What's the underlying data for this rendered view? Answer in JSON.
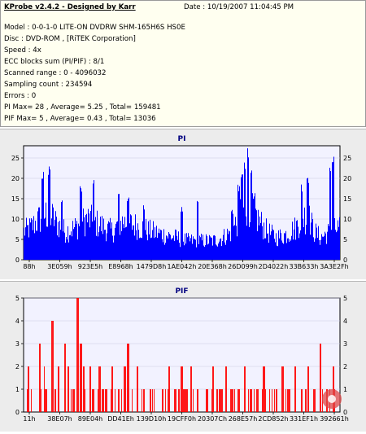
{
  "info": {
    "title": "KProbe v2.4.2 - Designed by Karr",
    "date": "Date : 10/19/2007 11:04:45 PM",
    "lines": [
      "Model : 0-0-1-0 LITE-ON DVDRW SHM-165H6S HS0E",
      "Disc : DVD-ROM ,  [RiTEK Corporation]",
      "Speed : 4x",
      "ECC blocks sum (PI/PIF) : 8/1",
      "Scanned range : 0 - 4096032",
      "Sampling count : 234594",
      "Errors : 0",
      "PI Max= 28 , Average= 5.25 , Total= 159481",
      "PIF Max= 5 , Average= 0.43 , Total= 13036"
    ]
  },
  "chart_data": [
    {
      "type": "bar",
      "title": "PI",
      "ylim": [
        0,
        28
      ],
      "yticks": [
        0,
        5,
        10,
        15,
        20,
        25
      ],
      "xtick_labels": [
        "88h",
        "3E059h",
        "923E5h",
        "E8968h",
        "1479D8h",
        "1AE042h",
        "20E368h",
        "26D099h",
        "2D4022h",
        "33B633h",
        "3A3E2Fh"
      ],
      "color": "#0000ff",
      "max": 28,
      "average": 5.25,
      "envelope": [
        [
          0,
          9
        ],
        [
          2,
          10
        ],
        [
          5,
          13
        ],
        [
          8,
          15
        ],
        [
          10,
          12
        ],
        [
          13,
          9
        ],
        [
          16,
          10
        ],
        [
          20,
          13
        ],
        [
          24,
          11
        ],
        [
          28,
          9
        ],
        [
          31,
          12
        ],
        [
          35,
          11
        ],
        [
          40,
          9
        ],
        [
          44,
          8
        ],
        [
          48,
          7
        ],
        [
          52,
          6
        ],
        [
          56,
          6
        ],
        [
          60,
          6
        ],
        [
          63,
          7
        ],
        [
          66,
          9
        ],
        [
          68,
          13
        ],
        [
          70,
          17
        ],
        [
          72,
          18
        ],
        [
          74,
          13
        ],
        [
          77,
          9
        ],
        [
          80,
          7
        ],
        [
          83,
          8
        ],
        [
          86,
          10
        ],
        [
          88,
          13
        ],
        [
          90,
          14
        ],
        [
          92,
          9
        ],
        [
          94,
          7
        ],
        [
          97,
          9
        ],
        [
          100,
          10
        ]
      ],
      "spikes": [
        [
          6,
          22
        ],
        [
          8,
          23
        ],
        [
          12,
          16
        ],
        [
          18,
          19
        ],
        [
          22,
          20
        ],
        [
          30,
          17
        ],
        [
          33,
          16
        ],
        [
          38,
          14
        ],
        [
          50,
          13
        ],
        [
          55,
          15
        ],
        [
          66,
          13
        ],
        [
          68,
          19
        ],
        [
          69,
          22
        ],
        [
          70,
          25
        ],
        [
          71,
          28
        ],
        [
          72,
          22
        ],
        [
          88,
          19
        ],
        [
          90,
          22
        ],
        [
          97,
          25
        ],
        [
          98,
          26
        ]
      ]
    },
    {
      "type": "bar",
      "title": "PIF",
      "ylim": [
        0,
        5
      ],
      "yticks": [
        0,
        1,
        2,
        3,
        4,
        5
      ],
      "xtick_labels": [
        "11h",
        "38E07h",
        "89E04h",
        "DD41Eh",
        "139D10h",
        "19CFF0h",
        "20307Ch",
        "268E57h",
        "2CD852h",
        "331EF1h",
        "392661h"
      ],
      "color": "#ff0000",
      "max": 5,
      "average": 0.43,
      "spikes": [
        [
          1.5,
          2
        ],
        [
          5,
          3
        ],
        [
          6.5,
          2
        ],
        [
          7,
          1
        ],
        [
          9,
          4
        ],
        [
          11,
          2
        ],
        [
          13,
          3
        ],
        [
          14,
          2
        ],
        [
          17,
          5
        ],
        [
          18,
          3
        ],
        [
          19,
          2
        ],
        [
          21,
          2
        ],
        [
          22,
          1
        ],
        [
          24,
          2
        ],
        [
          25,
          1
        ],
        [
          26,
          1
        ],
        [
          28,
          2
        ],
        [
          30,
          1
        ],
        [
          32,
          2
        ],
        [
          33,
          3
        ],
        [
          36,
          2
        ],
        [
          38,
          1
        ],
        [
          40,
          1
        ],
        [
          44,
          1
        ],
        [
          46,
          2
        ],
        [
          48,
          1
        ],
        [
          50,
          2
        ],
        [
          51,
          1
        ],
        [
          53,
          2
        ],
        [
          55,
          1
        ],
        [
          58,
          1
        ],
        [
          60,
          2
        ],
        [
          62,
          1
        ],
        [
          64,
          2
        ],
        [
          66,
          1
        ],
        [
          68,
          1
        ],
        [
          70,
          2
        ],
        [
          72,
          1
        ],
        [
          74,
          1
        ],
        [
          76,
          2
        ],
        [
          80,
          1
        ],
        [
          82,
          2
        ],
        [
          84,
          1
        ],
        [
          86,
          2
        ],
        [
          88,
          1
        ],
        [
          90,
          2
        ],
        [
          92,
          1
        ],
        [
          94,
          3
        ],
        [
          96,
          1
        ],
        [
          98,
          2
        ]
      ]
    }
  ]
}
